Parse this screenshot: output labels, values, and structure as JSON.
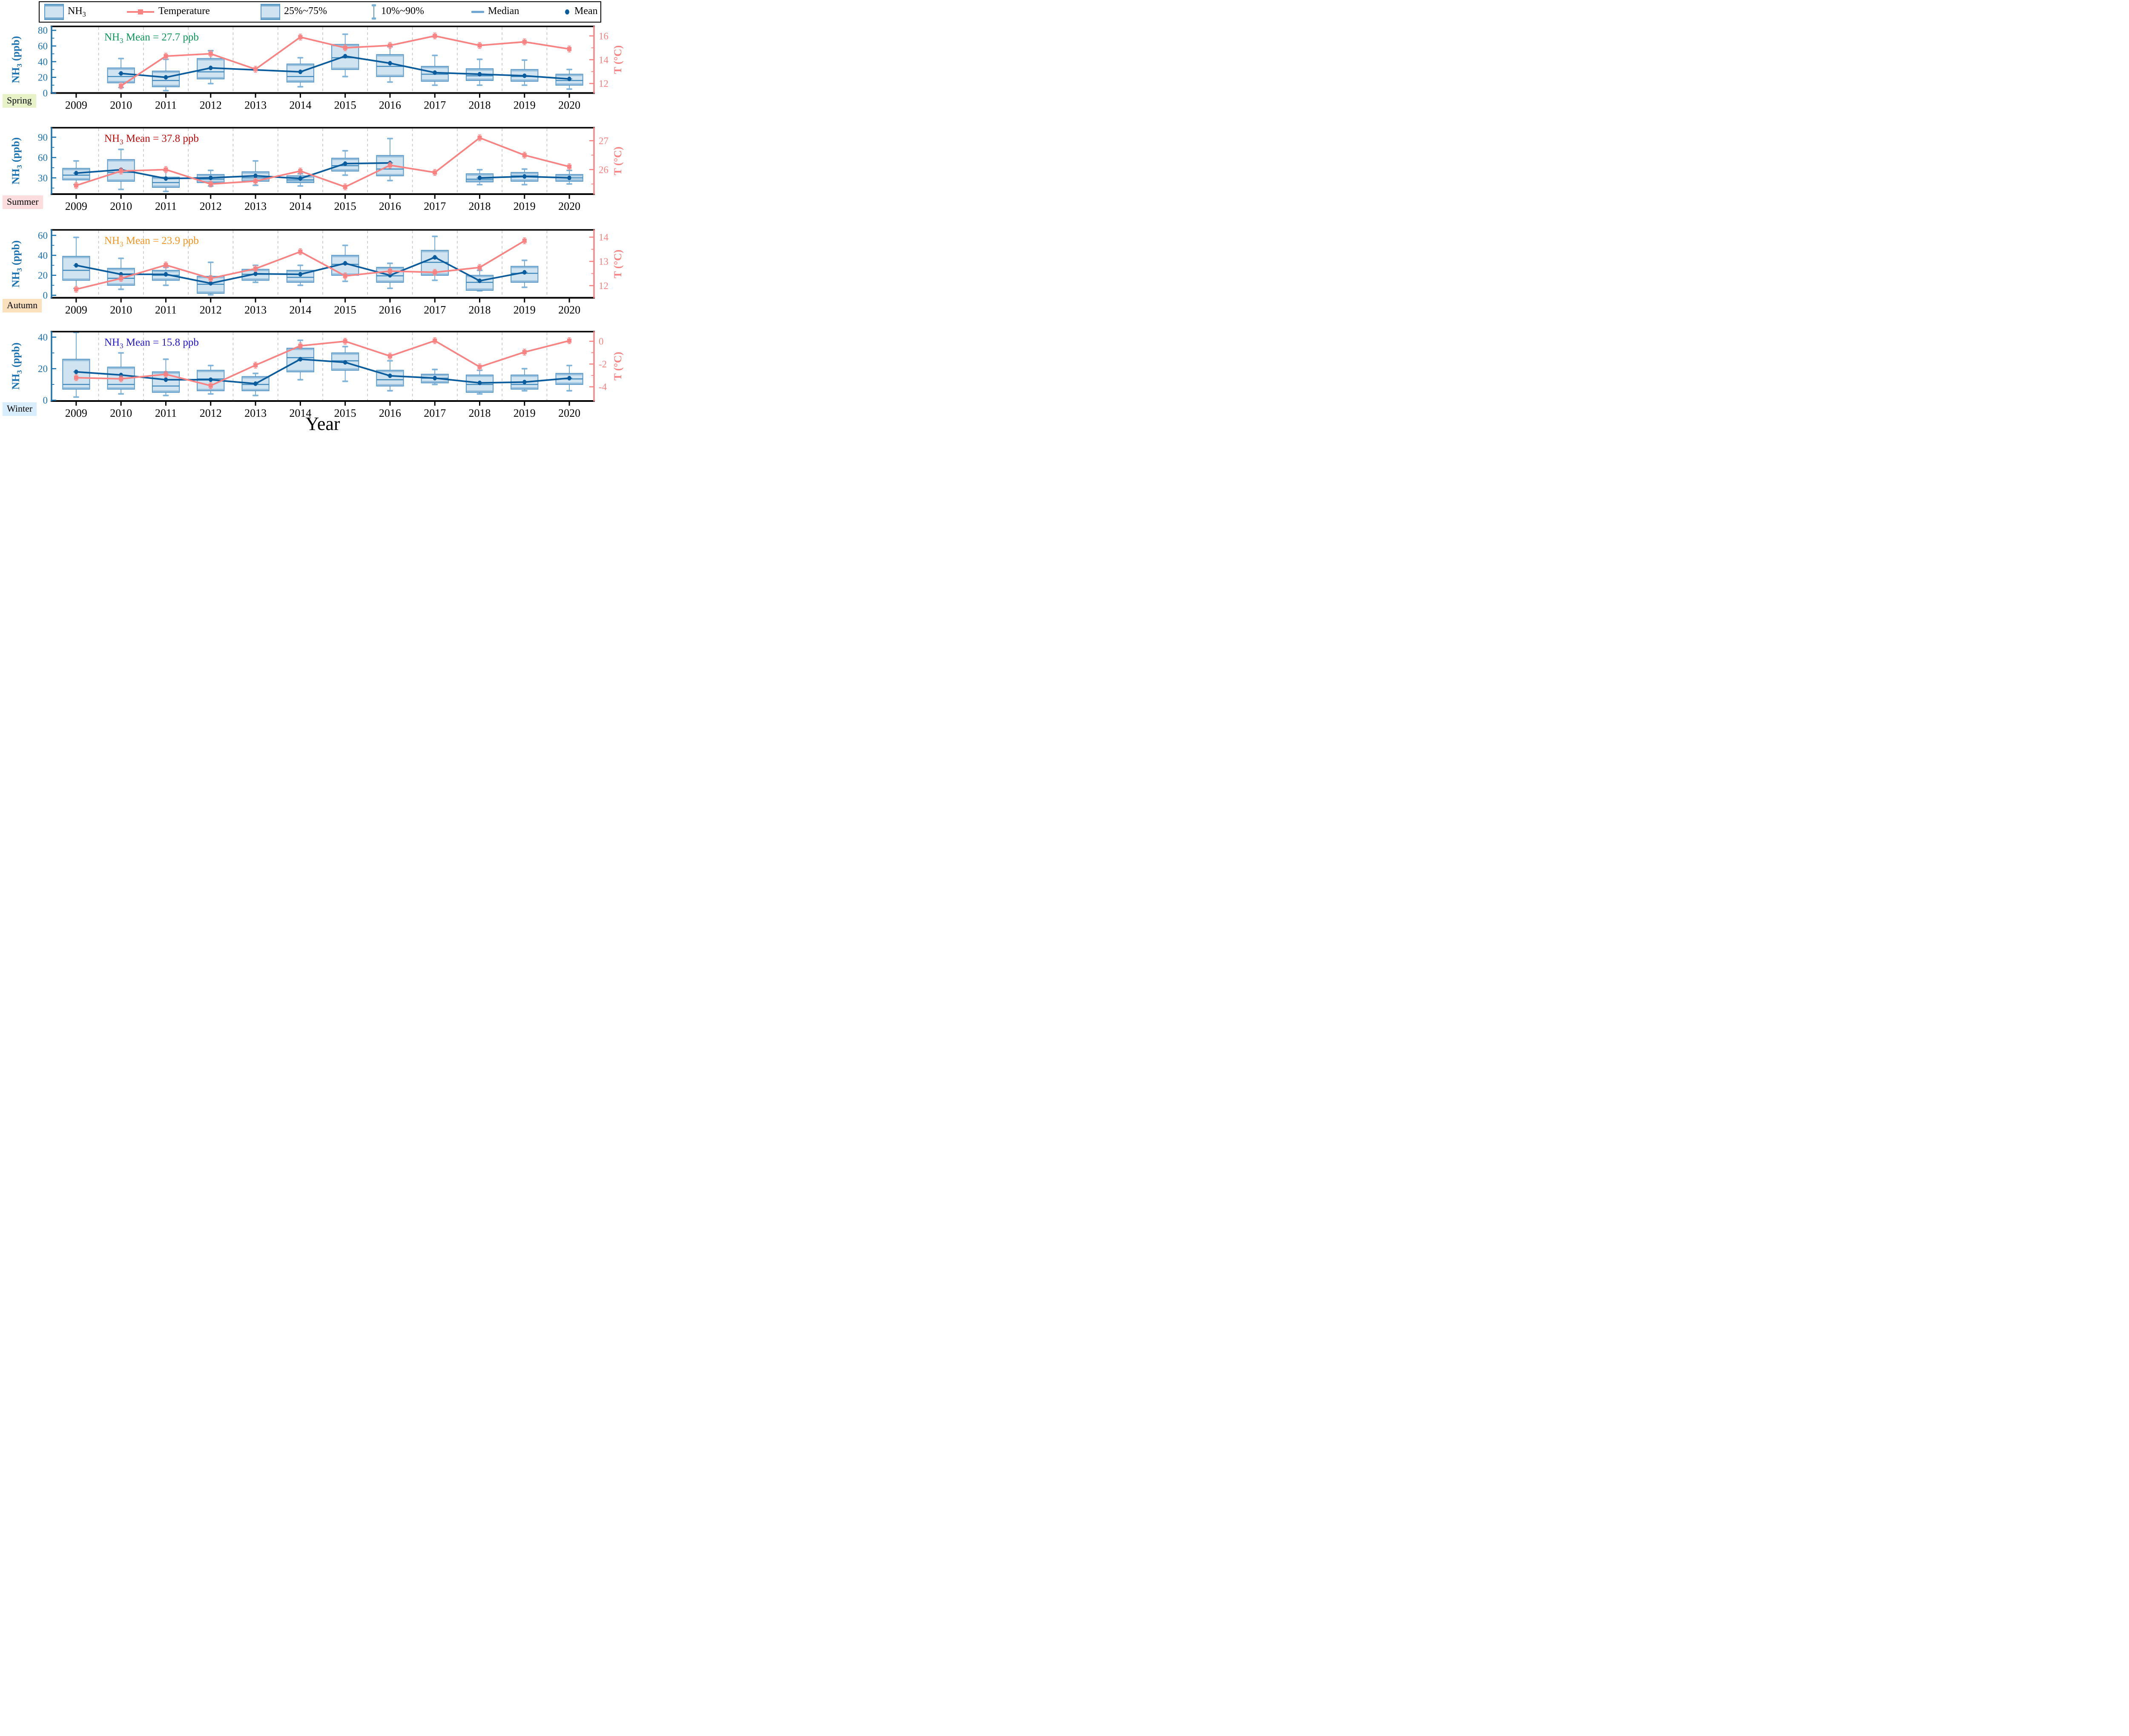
{
  "figure": {
    "xlabel": "Year"
  },
  "colors": {
    "box_fill": "#cfe3f0",
    "box_edge": "#5897c6",
    "box_band": "#5897c6",
    "whisker": "#5897c6",
    "whisker_cap": "#79b0d8",
    "median": "#3e88bb",
    "mean_line": "#0a5c9d",
    "temperature": "#f98383",
    "axis_left": "#1b72b0",
    "axis_right": "#f98383",
    "axis_x": "#000000",
    "grid": "#bfbfbf"
  },
  "legend": {
    "items": [
      {
        "prefix": "NH",
        "sub": "3",
        "rest": "",
        "swatch": "box-swatch"
      },
      {
        "prefix": "",
        "sub": "",
        "rest": "Temperature",
        "swatch": "temperature-line-swatch"
      },
      {
        "prefix": "",
        "sub": "",
        "rest": "25%~75%",
        "swatch": "box-swatch"
      },
      {
        "prefix": "",
        "sub": "",
        "rest": "10%~90%",
        "swatch": "errorbar-swatch"
      },
      {
        "prefix": "",
        "sub": "",
        "rest": "Median",
        "swatch": "median-line-swatch"
      },
      {
        "prefix": "",
        "sub": "",
        "rest": "Mean",
        "swatch": "mean-dot-swatch"
      }
    ]
  },
  "chart_data": {
    "type": "box",
    "x": "Year",
    "years": [
      2009,
      2010,
      2011,
      2012,
      2013,
      2014,
      2015,
      2016,
      2017,
      2018,
      2019,
      2020
    ],
    "panels": [
      {
        "season": "Spring",
        "season_bg": "#e7f3c7",
        "annotation": {
          "prefix": "NH",
          "sub": "3",
          "rest": " Mean = 27.7 ppb",
          "color": "#0c9559"
        },
        "y_left": {
          "prefix": "NH",
          "sub": "3",
          "rest": " (ppb)",
          "min": 0,
          "max": 85,
          "ticks": [
            0,
            20,
            40,
            60,
            80
          ],
          "minor": [
            10,
            30,
            50,
            70
          ]
        },
        "y_right": {
          "label": "T (°C)",
          "min": 11.2,
          "max": 16.8,
          "ticks": [
            12,
            14,
            16
          ],
          "minor": [
            13,
            15
          ]
        },
        "mean_bridge": true,
        "boxes": [
          null,
          {
            "p25": 13,
            "median": 21,
            "p75": 32,
            "mean": 25,
            "w10": 7,
            "w90": 44
          },
          {
            "p25": 8,
            "median": 16,
            "p75": 28,
            "mean": 20,
            "w10": 3,
            "w90": 43
          },
          {
            "p25": 18,
            "median": 27,
            "p75": 44,
            "mean": 32,
            "w10": 12,
            "w90": 54
          },
          null,
          {
            "p25": 14,
            "median": 21,
            "p75": 37,
            "mean": 27,
            "w10": 8,
            "w90": 45
          },
          {
            "p25": 30,
            "median": 45,
            "p75": 62,
            "mean": 47,
            "w10": 21,
            "w90": 75
          },
          {
            "p25": 21,
            "median": 34,
            "p75": 49,
            "mean": 38,
            "w10": 14,
            "w90": 59
          },
          {
            "p25": 15,
            "median": 24,
            "p75": 34,
            "mean": 26,
            "w10": 10,
            "w90": 48
          },
          {
            "p25": 16,
            "median": 22,
            "p75": 31,
            "mean": 24,
            "w10": 10,
            "w90": 43
          },
          {
            "p25": 15,
            "median": 21,
            "p75": 30,
            "mean": 22,
            "w10": 10,
            "w90": 42
          },
          {
            "p25": 10,
            "median": 16,
            "p75": 24,
            "mean": 18,
            "w10": 5,
            "w90": 30
          }
        ],
        "temperature": [
          null,
          11.8,
          14.3,
          14.5,
          13.2,
          15.9,
          15.0,
          15.2,
          16.0,
          15.2,
          15.5,
          14.9
        ]
      },
      {
        "season": "Summer",
        "season_bg": "#fcdcdc",
        "annotation": {
          "prefix": "NH",
          "sub": "3",
          "rest": " Mean = 37.8 ppb",
          "color": "#c00a0a"
        },
        "y_left": {
          "prefix": "NH",
          "sub": "3",
          "rest": " (ppb)",
          "min": 6,
          "max": 104,
          "ticks": [
            30,
            60,
            90
          ],
          "minor": [
            15,
            45,
            75
          ]
        },
        "y_right": {
          "label": "T (°C)",
          "min": 25.15,
          "max": 27.45,
          "ticks": [
            26,
            27
          ],
          "minor": [
            25.5,
            26.5
          ]
        },
        "mean_bridge": false,
        "boxes": [
          {
            "p25": 27,
            "median": 34,
            "p75": 44,
            "mean": 37,
            "w10": 20,
            "w90": 55
          },
          {
            "p25": 25,
            "median": 38,
            "p75": 57,
            "mean": 42,
            "w10": 13,
            "w90": 72
          },
          {
            "p25": 16,
            "median": 23,
            "p75": 31,
            "mean": 29,
            "w10": 10,
            "w90": 41
          },
          {
            "p25": 23,
            "median": 28,
            "p75": 35,
            "mean": 30,
            "w10": 18,
            "w90": 41
          },
          {
            "p25": 25,
            "median": 30,
            "p75": 39,
            "mean": 33,
            "w10": 19,
            "w90": 55
          },
          {
            "p25": 23,
            "median": 27,
            "p75": 33,
            "mean": 29,
            "w10": 18,
            "w90": 36
          },
          {
            "p25": 40,
            "median": 48,
            "p75": 59,
            "mean": 51,
            "w10": 34,
            "w90": 70
          },
          {
            "p25": 33,
            "median": 43,
            "p75": 63,
            "mean": 52,
            "w10": 26,
            "w90": 88
          },
          null,
          {
            "p25": 24,
            "median": 28,
            "p75": 36,
            "mean": 30,
            "w10": 20,
            "w90": 42
          },
          {
            "p25": 25,
            "median": 33,
            "p75": 38,
            "mean": 32,
            "w10": 20,
            "w90": 43
          },
          {
            "p25": 25,
            "median": 30,
            "p75": 35,
            "mean": 30,
            "w10": 21,
            "w90": 41
          }
        ],
        "temperature": [
          25.45,
          25.95,
          26.0,
          25.5,
          25.6,
          25.95,
          25.4,
          26.15,
          25.9,
          27.1,
          26.5,
          26.1
        ]
      },
      {
        "season": "Autumn",
        "season_bg": "#fbe0bd",
        "annotation": {
          "prefix": "NH",
          "sub": "3",
          "rest": " Mean = 23.9 ppb",
          "color": "#f5941f"
        },
        "y_left": {
          "prefix": "NH",
          "sub": "3",
          "rest": " (ppb)",
          "min": -2.5,
          "max": 65.5,
          "ticks": [
            0,
            20,
            40,
            60
          ],
          "minor": [
            10,
            30,
            50
          ]
        },
        "y_right": {
          "label": "T (°C)",
          "min": 11.5,
          "max": 14.3,
          "ticks": [
            12,
            13,
            14
          ],
          "minor": [
            12.5,
            13.5
          ]
        },
        "mean_bridge": true,
        "boxes": [
          {
            "p25": 15,
            "median": 25,
            "p75": 39,
            "mean": 30,
            "w10": 7,
            "w90": 58
          },
          {
            "p25": 10,
            "median": 17,
            "p75": 27,
            "mean": 21,
            "w10": 6,
            "w90": 37
          },
          {
            "p25": 15,
            "median": 20,
            "p75": 25,
            "mean": 21,
            "w10": 10,
            "w90": 28
          },
          {
            "p25": 2,
            "median": 11,
            "p75": 19,
            "mean": 12,
            "w10": 0.5,
            "w90": 33
          },
          {
            "p25": 15,
            "median": 21,
            "p75": 26,
            "mean": 21.5,
            "w10": 13,
            "w90": 30
          },
          {
            "p25": 13,
            "median": 18,
            "p75": 25,
            "mean": 21,
            "w10": 10,
            "w90": 30
          },
          {
            "p25": 20,
            "median": 31,
            "p75": 40,
            "mean": 32,
            "w10": 14,
            "w90": 50
          },
          {
            "p25": 13,
            "median": 19.5,
            "p75": 28,
            "mean": 20,
            "w10": 7,
            "w90": 32
          },
          {
            "p25": 20,
            "median": 33,
            "p75": 45,
            "mean": 38,
            "w10": 15,
            "w90": 59
          },
          {
            "p25": 5,
            "median": 13,
            "p75": 20,
            "mean": 14.5,
            "w10": 4.5,
            "w90": 25
          },
          {
            "p25": 13,
            "median": 22,
            "p75": 29,
            "mean": 23,
            "w10": 8,
            "w90": 35
          },
          null
        ],
        "temperature": [
          11.85,
          12.3,
          12.85,
          12.3,
          12.7,
          13.4,
          12.4,
          12.6,
          12.55,
          12.75,
          13.85,
          null
        ]
      },
      {
        "season": "Winter",
        "season_bg": "#d8eefc",
        "annotation": {
          "prefix": "NH",
          "sub": "3",
          "rest": " Mean = 15.8 ppb",
          "color": "#2217cd"
        },
        "y_left": {
          "prefix": "NH",
          "sub": "3",
          "rest": " (ppb)",
          "min": -0.5,
          "max": 43.5,
          "ticks": [
            0,
            20,
            40
          ],
          "minor": [
            10,
            30
          ]
        },
        "y_right": {
          "label": "T (°C)",
          "min": -5.25,
          "max": 0.85,
          "ticks": [
            0,
            -2,
            -4
          ],
          "minor": [
            -1,
            -3
          ]
        },
        "mean_bridge": true,
        "boxes": [
          {
            "p25": 7,
            "median": 10,
            "p75": 26,
            "mean": 18,
            "w10": 2,
            "w90": 43
          },
          {
            "p25": 7,
            "median": 10,
            "p75": 21,
            "mean": 16,
            "w10": 4,
            "w90": 30
          },
          {
            "p25": 5,
            "median": 9,
            "p75": 18,
            "mean": 13,
            "w10": 3,
            "w90": 26
          },
          {
            "p25": 6,
            "median": 13.5,
            "p75": 19,
            "mean": 13,
            "w10": 4,
            "w90": 22
          },
          {
            "p25": 6,
            "median": 10,
            "p75": 15,
            "mean": 10.5,
            "w10": 3,
            "w90": 17
          },
          {
            "p25": 18,
            "median": 27,
            "p75": 33,
            "mean": 26,
            "w10": 13,
            "w90": 38
          },
          {
            "p25": 19,
            "median": 25,
            "p75": 30,
            "mean": 24,
            "w10": 12,
            "w90": 34
          },
          {
            "p25": 9,
            "median": 13,
            "p75": 19,
            "mean": 15.5,
            "w10": 6,
            "w90": 25
          },
          {
            "p25": 11,
            "median": 14,
            "p75": 16.5,
            "mean": 14,
            "w10": 10,
            "w90": 19.5
          },
          {
            "p25": 5,
            "median": 10,
            "p75": 16,
            "mean": 11,
            "w10": 4,
            "w90": 19
          },
          {
            "p25": 7,
            "median": 10,
            "p75": 16,
            "mean": 11.5,
            "w10": 6,
            "w90": 20
          },
          {
            "p25": 10,
            "median": 13.5,
            "p75": 17,
            "mean": 14,
            "w10": 6,
            "w90": 22
          }
        ],
        "temperature": [
          -3.2,
          -3.3,
          -2.9,
          -3.9,
          -2.1,
          -0.4,
          0.0,
          -1.3,
          0.05,
          -2.25,
          -0.95,
          0.05
        ]
      }
    ]
  }
}
